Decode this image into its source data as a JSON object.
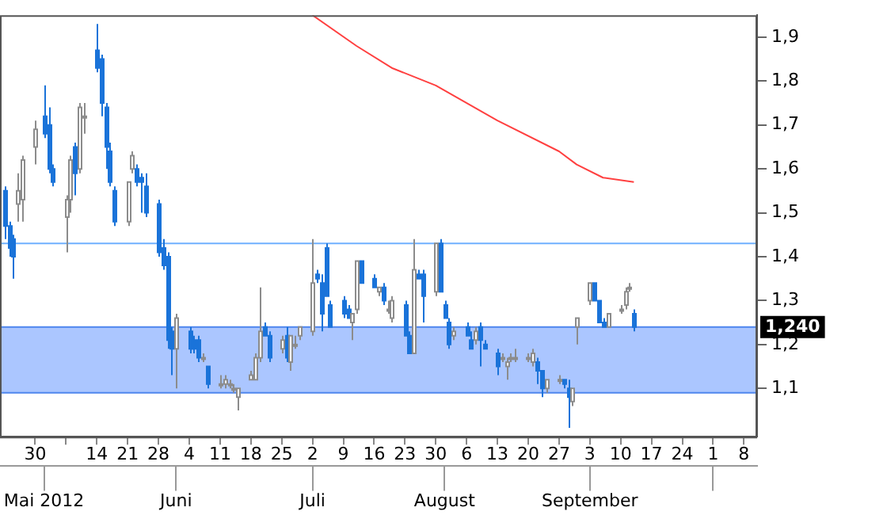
{
  "chart_data": {
    "type": "candlestick",
    "series": [
      {
        "type": "candlestick",
        "colors": [
          "#1a73d9",
          "#1a73d9",
          "#1a73d9",
          "#ffffff",
          "#ffffff",
          "#ffffff",
          "#1a73d9",
          "#1a73d9",
          "#1a73d9",
          "#ffffff",
          "#ffffff",
          "#1a73d9",
          "#ffffff",
          "#ffffff",
          "#1a73d9",
          "#1a73d9",
          "#1a73d9",
          "#1a73d9",
          "#1a73d9",
          "#ffffff",
          "#ffffff",
          "#1a73d9",
          "#1a73d9",
          "#1a73d9",
          "#1a73d9",
          "#1a73d9",
          "#1a73d9",
          "#1a73d9",
          "#ffffff",
          "#1a73d9",
          "#1a73d9",
          "#1a73d9",
          "#ffffff",
          "#1a73d9",
          "#ffffff",
          "#ffffff",
          "#ffffff",
          "#ffffff",
          "#ffffff",
          "#ffffff",
          "#ffffff",
          "#ffffff",
          "#1a73d9",
          "#1a73d9",
          "#ffffff",
          "#1a73d9",
          "#ffffff",
          "#ffffff",
          "#ffffff",
          "#ffffff",
          "#1a73d9",
          "#1a73d9",
          "#1a73d9",
          "#1a73d9",
          "#1a73d9",
          "#1a73d9",
          "#ffffff",
          "#ffffff",
          "#1a73d9",
          "#1a73d9",
          "#ffffff",
          "#1a73d9",
          "#ffffff",
          "#ffffff",
          "#1a73d9",
          "#1a73d9",
          "#ffffff",
          "#1a73d9",
          "#1a73d9",
          "#ffffff",
          "#1a73d9",
          "#1a73d9",
          "#1a73d9",
          "#ffffff",
          "#1a73d9",
          "#1a73d9",
          "#ffffff",
          "#1a73d9",
          "#1a73d9",
          "#1a73d9",
          "#ffffff",
          "#ffffff",
          "#ffffff",
          "#ffffff",
          "#ffffff",
          "#ffffff",
          "#1a73d9",
          "#1a73d9",
          "#ffffff",
          "#ffffff",
          "#1a73d9",
          "#1a73d9",
          "#ffffff",
          "#ffffff",
          "#ffffff",
          "#1a73d9",
          "#1a73d9",
          "#1a73d9",
          "#ffffff",
          "#ffffff",
          "#ffffff",
          "#ffffff",
          "#1a73d9"
        ],
        "x": [
          "2012-04-23",
          "2012-04-24",
          "2012-04-25",
          "2012-04-26",
          "2012-04-27",
          "2012-04-30",
          "2012-05-02",
          "2012-05-03",
          "2012-05-04",
          "2012-05-07",
          "2012-05-08",
          "2012-05-09",
          "2012-05-10",
          "2012-05-11",
          "2012-05-14",
          "2012-05-15",
          "2012-05-16",
          "2012-05-17",
          "2012-05-18",
          "2012-05-21",
          "2012-05-22",
          "2012-05-23",
          "2012-05-24",
          "2012-05-25",
          "2012-05-28",
          "2012-05-29",
          "2012-05-30",
          "2012-05-31",
          "2012-06-01",
          "2012-06-04",
          "2012-06-05",
          "2012-06-06",
          "2012-06-07",
          "2012-06-08",
          "2012-06-11",
          "2012-06-12",
          "2012-06-13",
          "2012-06-14",
          "2012-06-15",
          "2012-06-18",
          "2012-06-19",
          "2012-06-20",
          "2012-06-21",
          "2012-06-22",
          "2012-06-25",
          "2012-06-26",
          "2012-06-27",
          "2012-06-28",
          "2012-06-29",
          "2012-07-02",
          "2012-07-03",
          "2012-07-04",
          "2012-07-05",
          "2012-07-06",
          "2012-07-09",
          "2012-07-10",
          "2012-07-11",
          "2012-07-12",
          "2012-07-13",
          "2012-07-16",
          "2012-07-17",
          "2012-07-18",
          "2012-07-19",
          "2012-07-20",
          "2012-07-23",
          "2012-07-24",
          "2012-07-25",
          "2012-07-26",
          "2012-07-27",
          "2012-07-30",
          "2012-07-31",
          "2012-08-01",
          "2012-08-02",
          "2012-08-03",
          "2012-08-06",
          "2012-08-07",
          "2012-08-08",
          "2012-08-09",
          "2012-08-10",
          "2012-08-13",
          "2012-08-14",
          "2012-08-15",
          "2012-08-16",
          "2012-08-17",
          "2012-08-20",
          "2012-08-21",
          "2012-08-22",
          "2012-08-23",
          "2012-08-24",
          "2012-08-27",
          "2012-08-28",
          "2012-08-29",
          "2012-08-30",
          "2012-08-31",
          "2012-09-03",
          "2012-09-04",
          "2012-09-05",
          "2012-09-06",
          "2012-09-07",
          "2012-09-10",
          "2012-09-11",
          "2012-09-12",
          "2012-09-13"
        ],
        "ohlc": [
          [
            1.55,
            1.56,
            1.44,
            1.47
          ],
          [
            1.47,
            1.48,
            1.4,
            1.42
          ],
          [
            1.44,
            1.45,
            1.35,
            1.4
          ],
          [
            1.52,
            1.59,
            1.48,
            1.55
          ],
          [
            1.53,
            1.63,
            1.48,
            1.62
          ],
          [
            1.65,
            1.71,
            1.61,
            1.69
          ],
          [
            1.72,
            1.79,
            1.67,
            1.68
          ],
          [
            1.7,
            1.74,
            1.59,
            1.6
          ],
          [
            1.6,
            1.61,
            1.56,
            1.57
          ],
          [
            1.49,
            1.54,
            1.41,
            1.53
          ],
          [
            1.53,
            1.63,
            1.5,
            1.62
          ],
          [
            1.65,
            1.66,
            1.54,
            1.59
          ],
          [
            1.6,
            1.75,
            1.59,
            1.74
          ],
          [
            1.72,
            1.75,
            1.68,
            1.72
          ],
          [
            1.87,
            1.93,
            1.82,
            1.83
          ],
          [
            1.85,
            1.86,
            1.72,
            1.75
          ],
          [
            1.74,
            1.75,
            1.6,
            1.65
          ],
          [
            1.64,
            1.66,
            1.56,
            1.57
          ],
          [
            1.55,
            1.56,
            1.47,
            1.48
          ],
          [
            1.48,
            1.57,
            1.47,
            1.57
          ],
          [
            1.6,
            1.64,
            1.59,
            1.63
          ],
          [
            1.6,
            1.61,
            1.56,
            1.57
          ],
          [
            1.58,
            1.59,
            1.5,
            1.57
          ],
          [
            1.56,
            1.59,
            1.49,
            1.5
          ],
          [
            1.52,
            1.53,
            1.4,
            1.41
          ],
          [
            1.42,
            1.44,
            1.37,
            1.38
          ],
          [
            1.4,
            1.41,
            1.19,
            1.21
          ],
          [
            1.23,
            1.24,
            1.13,
            1.19
          ],
          [
            1.19,
            1.27,
            1.1,
            1.26
          ],
          [
            1.23,
            1.24,
            1.18,
            1.19
          ],
          [
            1.21,
            1.22,
            1.18,
            1.19
          ],
          [
            1.21,
            1.22,
            1.16,
            1.17
          ],
          [
            1.17,
            1.18,
            1.16,
            1.17
          ],
          [
            1.15,
            1.15,
            1.1,
            1.11
          ],
          [
            1.11,
            1.13,
            1.1,
            1.11
          ],
          [
            1.11,
            1.13,
            1.1,
            1.12
          ],
          [
            1.11,
            1.12,
            1.1,
            1.11
          ],
          [
            1.1,
            1.11,
            1.09,
            1.1
          ],
          [
            1.08,
            1.1,
            1.05,
            1.1
          ],
          [
            1.12,
            1.14,
            1.12,
            1.13
          ],
          [
            1.12,
            1.18,
            1.12,
            1.17
          ],
          [
            1.17,
            1.33,
            1.16,
            1.23
          ],
          [
            1.24,
            1.25,
            1.22,
            1.22
          ],
          [
            1.22,
            1.23,
            1.16,
            1.17
          ],
          [
            1.19,
            1.22,
            1.18,
            1.21
          ],
          [
            1.22,
            1.24,
            1.16,
            1.17
          ],
          [
            1.16,
            1.22,
            1.14,
            1.22
          ],
          [
            1.2,
            1.22,
            1.19,
            1.2
          ],
          [
            1.22,
            1.24,
            1.21,
            1.24
          ],
          [
            1.23,
            1.44,
            1.22,
            1.34
          ],
          [
            1.36,
            1.37,
            1.34,
            1.35
          ],
          [
            1.34,
            1.36,
            1.23,
            1.27
          ],
          [
            1.42,
            1.43,
            1.31,
            1.31
          ],
          [
            1.29,
            1.3,
            1.24,
            1.24
          ],
          [
            1.3,
            1.31,
            1.26,
            1.27
          ],
          [
            1.28,
            1.29,
            1.26,
            1.26
          ],
          [
            1.25,
            1.27,
            1.21,
            1.27
          ],
          [
            1.28,
            1.39,
            1.27,
            1.39
          ],
          [
            1.39,
            1.39,
            1.34,
            1.34
          ],
          [
            1.35,
            1.36,
            1.33,
            1.33
          ],
          [
            1.32,
            1.33,
            1.31,
            1.33
          ],
          [
            1.33,
            1.34,
            1.29,
            1.3
          ],
          [
            1.28,
            1.3,
            1.27,
            1.28
          ],
          [
            1.26,
            1.31,
            1.25,
            1.3
          ],
          [
            1.29,
            1.3,
            1.22,
            1.22
          ],
          [
            1.22,
            1.23,
            1.18,
            1.18
          ],
          [
            1.18,
            1.44,
            1.18,
            1.37
          ],
          [
            1.36,
            1.37,
            1.35,
            1.35
          ],
          [
            1.36,
            1.37,
            1.25,
            1.31
          ],
          [
            1.32,
            1.43,
            1.31,
            1.43
          ],
          [
            1.43,
            1.44,
            1.32,
            1.32
          ],
          [
            1.29,
            1.3,
            1.26,
            1.26
          ],
          [
            1.25,
            1.26,
            1.19,
            1.2
          ],
          [
            1.22,
            1.24,
            1.21,
            1.23
          ],
          [
            1.24,
            1.25,
            1.22,
            1.22
          ],
          [
            1.21,
            1.23,
            1.19,
            1.19
          ],
          [
            1.21,
            1.24,
            1.2,
            1.23
          ],
          [
            1.24,
            1.25,
            1.15,
            1.21
          ],
          [
            1.2,
            1.21,
            1.19,
            1.19
          ],
          [
            1.18,
            1.19,
            1.13,
            1.15
          ],
          [
            1.17,
            1.18,
            1.16,
            1.17
          ],
          [
            1.15,
            1.17,
            1.12,
            1.16
          ],
          [
            1.17,
            1.18,
            1.16,
            1.17
          ],
          [
            1.17,
            1.19,
            1.16,
            1.17
          ],
          [
            1.17,
            1.18,
            1.16,
            1.17
          ],
          [
            1.16,
            1.19,
            1.15,
            1.18
          ],
          [
            1.16,
            1.17,
            1.11,
            1.14
          ],
          [
            1.14,
            1.14,
            1.08,
            1.1
          ],
          [
            1.1,
            1.12,
            1.09,
            1.12
          ],
          [
            1.12,
            1.13,
            1.11,
            1.12
          ],
          [
            1.12,
            1.12,
            1.1,
            1.11
          ],
          [
            1.1,
            1.12,
            1.01,
            1.08
          ],
          [
            1.07,
            1.1,
            1.06,
            1.1
          ],
          [
            1.24,
            1.26,
            1.2,
            1.26
          ],
          [
            1.3,
            1.34,
            1.29,
            1.34
          ],
          [
            1.34,
            1.34,
            1.3,
            1.3
          ],
          [
            1.3,
            1.3,
            1.25,
            1.25
          ],
          [
            1.25,
            1.26,
            1.24,
            1.24
          ],
          [
            1.24,
            1.27,
            1.24,
            1.27
          ],
          [
            1.28,
            1.29,
            1.27,
            1.28
          ],
          [
            1.29,
            1.33,
            1.28,
            1.32
          ],
          [
            1.33,
            1.34,
            1.32,
            1.33
          ],
          [
            1.27,
            1.28,
            1.23,
            1.24
          ]
        ]
      },
      {
        "type": "line",
        "color": "#ff4040",
        "x": [
          "2012-07-02",
          "2012-07-12",
          "2012-07-20",
          "2012-07-30",
          "2012-08-13",
          "2012-08-27",
          "2012-08-31",
          "2012-09-06",
          "2012-09-13"
        ],
        "values": [
          1.95,
          1.88,
          1.83,
          1.79,
          1.71,
          1.64,
          1.61,
          1.58,
          1.57
        ]
      }
    ],
    "xlim": [
      "2012-04-22",
      "2012-10-11"
    ],
    "xticks": [
      {
        "value": "2012-04-30",
        "label": "30"
      },
      {
        "value": "2012-05-07",
        "label": null
      },
      {
        "value": "2012-05-14",
        "label": "14"
      },
      {
        "value": "2012-05-21",
        "label": "21"
      },
      {
        "value": "2012-05-28",
        "label": "28"
      },
      {
        "value": "2012-06-04",
        "label": "4"
      },
      {
        "value": "2012-06-11",
        "label": "11"
      },
      {
        "value": "2012-06-18",
        "label": "18"
      },
      {
        "value": "2012-06-25",
        "label": "25"
      },
      {
        "value": "2012-07-02",
        "label": "2"
      },
      {
        "value": "2012-07-09",
        "label": "9"
      },
      {
        "value": "2012-07-16",
        "label": "16"
      },
      {
        "value": "2012-07-23",
        "label": "23"
      },
      {
        "value": "2012-07-30",
        "label": "30"
      },
      {
        "value": "2012-08-06",
        "label": "6"
      },
      {
        "value": "2012-08-13",
        "label": "13"
      },
      {
        "value": "2012-08-20",
        "label": "20"
      },
      {
        "value": "2012-08-27",
        "label": "27"
      },
      {
        "value": "2012-09-03",
        "label": "3"
      },
      {
        "value": "2012-09-10",
        "label": "10"
      },
      {
        "value": "2012-09-17",
        "label": "17"
      },
      {
        "value": "2012-09-24",
        "label": "24"
      },
      {
        "value": "2012-10-01",
        "label": "1"
      },
      {
        "value": "2012-10-08",
        "label": "8"
      }
    ],
    "x2lim": [
      "2012-04-22",
      "2012-10-11"
    ],
    "x2ticks": [
      {
        "value": "2012-05-02",
        "label": "Mai 2012"
      },
      {
        "value": "2012-06-01",
        "label": "Juni"
      },
      {
        "value": "2012-07-02",
        "label": "Juli"
      },
      {
        "value": "2012-08-01",
        "label": "August"
      },
      {
        "value": "2012-09-03",
        "label": "September"
      },
      {
        "value": "2012-10-01",
        "label": null
      }
    ],
    "ylim": [
      0.99,
      1.95
    ],
    "yticks": [
      {
        "value": 1.1,
        "label": "1,1"
      },
      {
        "value": 1.2,
        "label": "1,2"
      },
      {
        "value": 1.3,
        "label": "1,3"
      },
      {
        "value": 1.4,
        "label": "1,4"
      },
      {
        "value": 1.5,
        "label": "1,5"
      },
      {
        "value": 1.6,
        "label": "1,6"
      },
      {
        "value": 1.7,
        "label": "1,7"
      },
      {
        "value": 1.8,
        "label": "1,8"
      },
      {
        "value": 1.9,
        "label": "1,9"
      }
    ],
    "ref_lines": [
      {
        "axis": "y",
        "value": 1.43,
        "color": "#6fb0ff"
      }
    ],
    "bands": [
      {
        "axis": "y",
        "from": 1.09,
        "to": 1.24,
        "color": "#8fb3ff"
      }
    ],
    "annotations": [
      {
        "text": "1,240",
        "y": 1.24
      }
    ]
  }
}
